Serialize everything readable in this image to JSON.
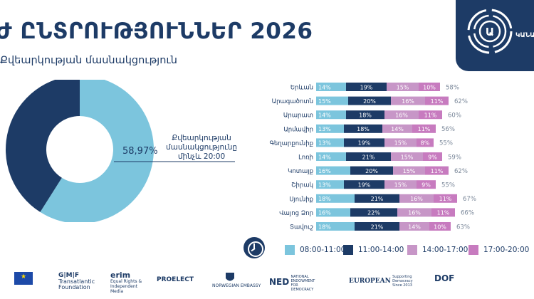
{
  "header": {
    "title": "Ժ ԸՆՏՐՈՒԹՅՈՒՆՆԵՐ 2026",
    "subtitle": "Քվեարկության մասնակցություն"
  },
  "donut": {
    "value_label": "58,97%",
    "annotation": "Քվեարկության մասնակցությունը մինչև 20:00"
  },
  "legend": [
    {
      "label": "08:00-11:00",
      "color": "#7cc5dd"
    },
    {
      "label": "11:00-14:00",
      "color": "#1d3b66"
    },
    {
      "label": "14:00-17:00",
      "color": "#c796c7"
    },
    {
      "label": "17:00-20:00",
      "color": "#c77bbf"
    }
  ],
  "sponsors": [
    {
      "name": "",
      "line2": "",
      "icon": "eu-flag-icon"
    },
    {
      "name": "G|M|F",
      "line2": "Transatlantic Foundation",
      "icon": ""
    },
    {
      "name": "erim",
      "line2": "Equal Rights & Independent Media",
      "icon": ""
    },
    {
      "name": "PROELECT",
      "line2": "",
      "icon": ""
    },
    {
      "name": "",
      "line2": "NORWEGIAN EMBASSY",
      "icon": "norway-crest-icon"
    },
    {
      "name": "NED",
      "line2": "NATIONAL ENDOWMENT FOR DEMOCRACY",
      "icon": ""
    },
    {
      "name": "EUROPEAN",
      "line2": "Supporting Democracy Since 2013",
      "icon": ""
    },
    {
      "name": "DOF",
      "line2": "",
      "icon": ""
    }
  ],
  "chart_data": [
    {
      "type": "pie",
      "title": "",
      "slices": [
        {
          "label": "58,97%",
          "value": 58.97,
          "color": "#7cc5dd"
        },
        {
          "label": "",
          "value": 41.03,
          "color": "#1d3b66"
        }
      ]
    },
    {
      "type": "bar",
      "stacked": true,
      "orientation": "horizontal",
      "categories": [
        "Երևան",
        "Արագածոտն",
        "Արարատ",
        "Արմավիր",
        "Գեղարքունիք",
        "Լոռի",
        "Կոտայք",
        "Շիրակ",
        "Սյունիք",
        "Վայոց Ձոր",
        "Տավուշ"
      ],
      "series": [
        {
          "name": "08:00-11:00",
          "color": "#7cc5dd",
          "values": [
            14,
            15,
            14,
            13,
            13,
            14,
            16,
            13,
            18,
            16,
            18
          ]
        },
        {
          "name": "11:00-14:00",
          "color": "#1d3b66",
          "values": [
            19,
            20,
            18,
            18,
            19,
            21,
            20,
            19,
            21,
            22,
            21
          ]
        },
        {
          "name": "14:00-17:00",
          "color": "#c796c7",
          "values": [
            15,
            16,
            16,
            14,
            15,
            15,
            15,
            15,
            16,
            16,
            14
          ]
        },
        {
          "name": "17:00-20:00",
          "color": "#c77bbf",
          "values": [
            10,
            11,
            11,
            11,
            8,
            9,
            11,
            9,
            11,
            11,
            10
          ]
        }
      ],
      "totals": [
        58,
        62,
        60,
        56,
        55,
        59,
        62,
        55,
        67,
        66,
        63
      ],
      "value_suffix": "%",
      "legend_position": "bottom"
    }
  ]
}
